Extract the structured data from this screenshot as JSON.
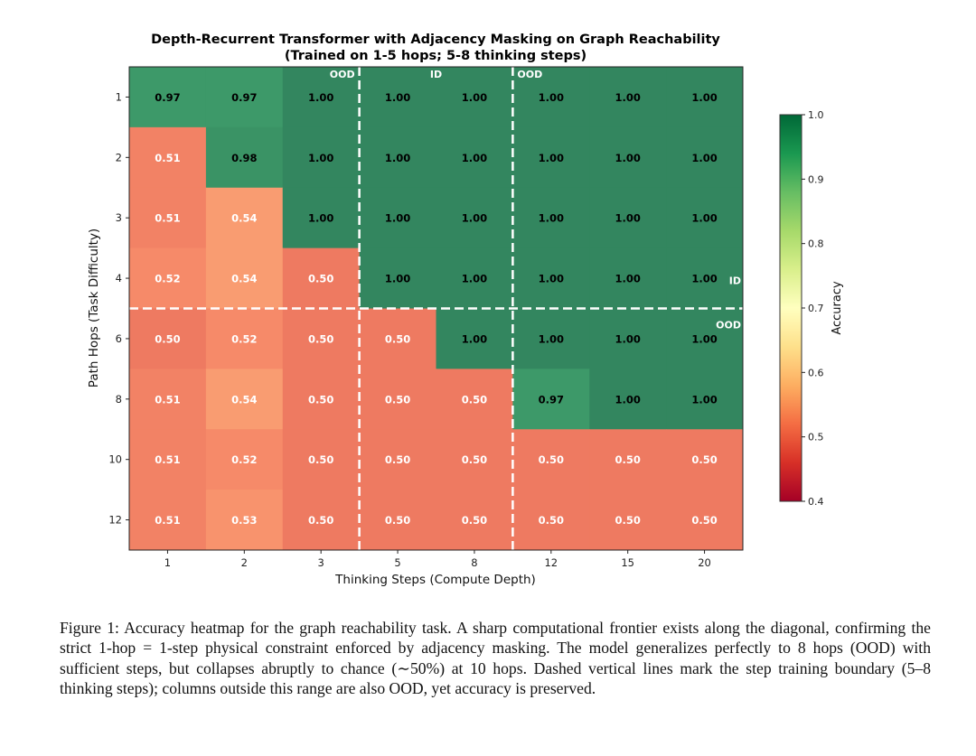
{
  "chart_data": {
    "type": "heatmap",
    "title": "Depth-Recurrent Transformer with Adjacency Masking on Graph Reachability",
    "subtitle": "(Trained on 1-5 hops; 5-8 thinking steps)",
    "xlabel": "Thinking Steps (Compute Depth)",
    "ylabel": "Path Hops (Task Difficulty)",
    "x_categories": [
      "1",
      "2",
      "3",
      "5",
      "8",
      "12",
      "15",
      "20"
    ],
    "y_categories": [
      "1",
      "2",
      "3",
      "4",
      "6",
      "8",
      "10",
      "12"
    ],
    "values": [
      [
        0.97,
        0.97,
        1.0,
        1.0,
        1.0,
        1.0,
        1.0,
        1.0
      ],
      [
        0.51,
        0.98,
        1.0,
        1.0,
        1.0,
        1.0,
        1.0,
        1.0
      ],
      [
        0.51,
        0.54,
        1.0,
        1.0,
        1.0,
        1.0,
        1.0,
        1.0
      ],
      [
        0.52,
        0.54,
        0.5,
        1.0,
        1.0,
        1.0,
        1.0,
        1.0
      ],
      [
        0.5,
        0.52,
        0.5,
        0.5,
        1.0,
        1.0,
        1.0,
        1.0
      ],
      [
        0.51,
        0.54,
        0.5,
        0.5,
        0.5,
        0.97,
        1.0,
        1.0
      ],
      [
        0.51,
        0.52,
        0.5,
        0.5,
        0.5,
        0.5,
        0.5,
        0.5
      ],
      [
        0.51,
        0.53,
        0.5,
        0.5,
        0.5,
        0.5,
        0.5,
        0.5
      ]
    ],
    "colormap": "RdYlGn",
    "vmin": 0.4,
    "vmax": 1.0,
    "colorbar": {
      "label": "Accuracy",
      "ticks": [
        "0.4",
        "0.5",
        "0.6",
        "0.7",
        "0.8",
        "0.9",
        "1.0"
      ],
      "tick_values": [
        0.4,
        0.5,
        0.6,
        0.7,
        0.8,
        0.9,
        1.0
      ],
      "placement": "right"
    },
    "boundaries": {
      "horizontal_after_row": "4",
      "vertical_after_columns": [
        "3",
        "8"
      ]
    },
    "region_labels": {
      "top": [
        "OOD",
        "ID",
        "OOD"
      ],
      "right": [
        "ID",
        "OOD"
      ]
    },
    "grid": false
  },
  "caption": {
    "label": "Figure 1:",
    "text": "Accuracy heatmap for the graph reachability task. A sharp computational frontier exists along the diagonal, confirming the strict 1-hop = 1-step physical constraint enforced by adjacency masking.  The model generalizes perfectly to 8 hops (OOD) with sufficient steps, but collapses abruptly to chance (∼50%) at 10 hops. Dashed vertical lines mark the step training boundary (5–8 thinking steps); columns outside this range are also OOD, yet accuracy is preserved."
  }
}
